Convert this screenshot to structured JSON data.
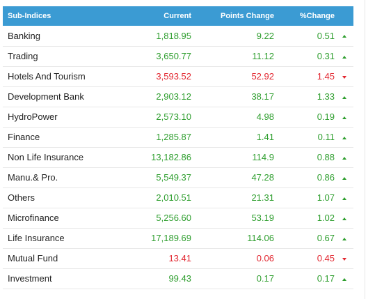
{
  "table": {
    "headers": {
      "name": "Sub-Indices",
      "current": "Current",
      "points": "Points Change",
      "pct": "%Change"
    },
    "rows": [
      {
        "name": "Banking",
        "current": "1,818.95",
        "points": "9.22",
        "pct": "0.51",
        "direction": "up"
      },
      {
        "name": "Trading",
        "current": "3,650.77",
        "points": "11.12",
        "pct": "0.31",
        "direction": "up"
      },
      {
        "name": "Hotels And Tourism",
        "current": "3,593.52",
        "points": "52.92",
        "pct": "1.45",
        "direction": "down"
      },
      {
        "name": "Development Bank",
        "current": "2,903.12",
        "points": "38.17",
        "pct": "1.33",
        "direction": "up"
      },
      {
        "name": "HydroPower",
        "current": "2,573.10",
        "points": "4.98",
        "pct": "0.19",
        "direction": "up"
      },
      {
        "name": "Finance",
        "current": "1,285.87",
        "points": "1.41",
        "pct": "0.11",
        "direction": "up"
      },
      {
        "name": "Non Life Insurance",
        "current": "13,182.86",
        "points": "114.9",
        "pct": "0.88",
        "direction": "up"
      },
      {
        "name": "Manu.& Pro.",
        "current": "5,549.37",
        "points": "47.28",
        "pct": "0.86",
        "direction": "up"
      },
      {
        "name": "Others",
        "current": "2,010.51",
        "points": "21.31",
        "pct": "1.07",
        "direction": "up"
      },
      {
        "name": "Microfinance",
        "current": "5,256.60",
        "points": "53.19",
        "pct": "1.02",
        "direction": "up"
      },
      {
        "name": "Life Insurance",
        "current": "17,189.69",
        "points": "114.06",
        "pct": "0.67",
        "direction": "up"
      },
      {
        "name": "Mutual Fund",
        "current": "13.41",
        "points": "0.06",
        "pct": "0.45",
        "direction": "down"
      },
      {
        "name": "Investment",
        "current": "99.43",
        "points": "0.17",
        "pct": "0.17",
        "direction": "up"
      }
    ]
  },
  "colors": {
    "header_bg": "#3b9bd3",
    "up": "#2e9e2e",
    "down": "#e2262f"
  }
}
